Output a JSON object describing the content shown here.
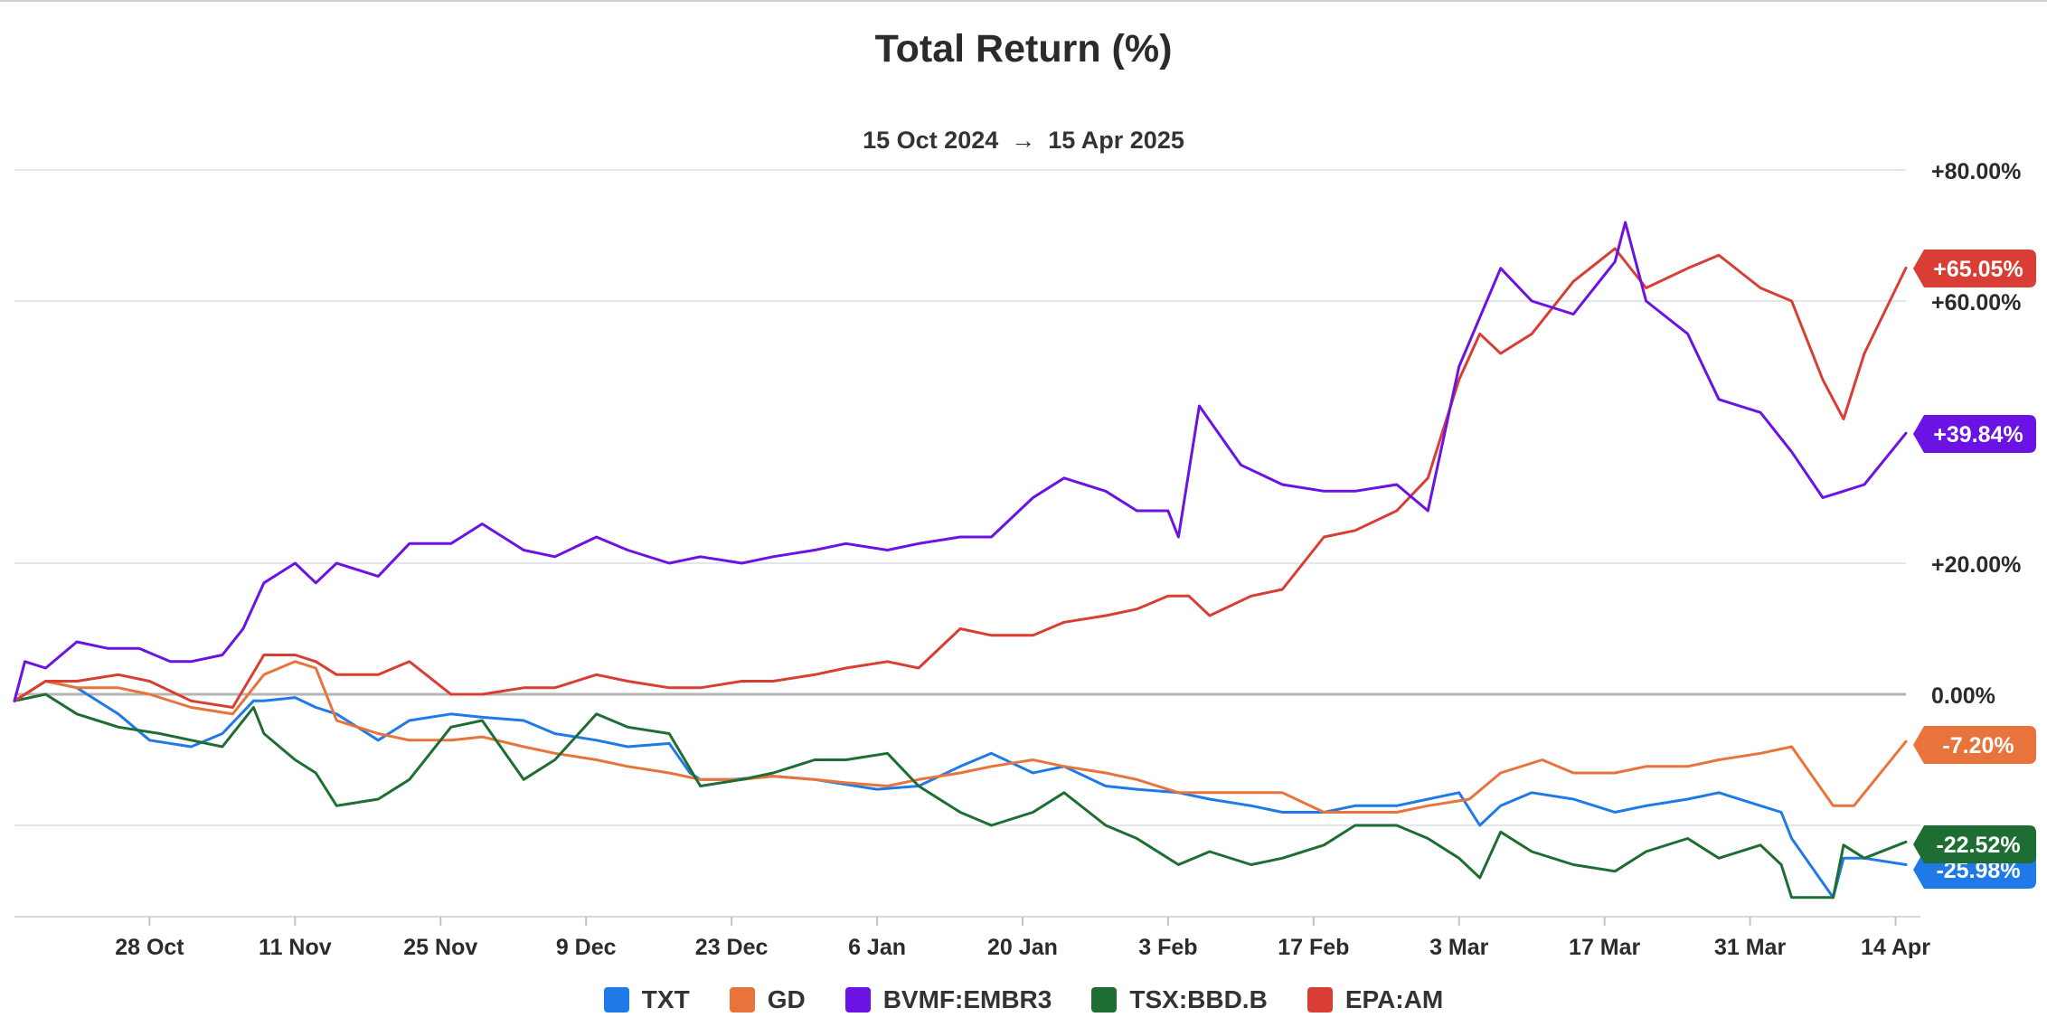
{
  "chart_data": {
    "type": "line",
    "title": "Total Return (%)",
    "date_range": {
      "start": "15 Oct 2024",
      "arrow": "→",
      "end": "15 Apr 2025"
    },
    "x_ticks": [
      "28 Oct",
      "11 Nov",
      "25 Nov",
      "9 Dec",
      "23 Dec",
      "6 Jan",
      "20 Jan",
      "3 Feb",
      "17 Feb",
      "3 Mar",
      "17 Mar",
      "31 Mar",
      "14 Apr"
    ],
    "y_ticks": [
      "+80.00%",
      "+60.00%",
      "+20.00%",
      "0.00%"
    ],
    "ylim": [
      -34,
      80
    ],
    "grid": true,
    "legend_position": "bottom",
    "series": [
      {
        "name": "TXT",
        "color": "#1f7ae8",
        "end_label": "-25.98%",
        "x": [
          "2024-10-15",
          "2024-10-18",
          "2024-10-21",
          "2024-10-25",
          "2024-10-28",
          "2024-11-01",
          "2024-11-04",
          "2024-11-07",
          "2024-11-08",
          "2024-11-11",
          "2024-11-13",
          "2024-11-15",
          "2024-11-19",
          "2024-11-22",
          "2024-11-26",
          "2024-11-29",
          "2024-12-03",
          "2024-12-06",
          "2024-12-10",
          "2024-12-13",
          "2024-12-17",
          "2024-12-19",
          "2024-12-20",
          "2024-12-23",
          "2024-12-27",
          "2024-12-31",
          "2025-01-06",
          "2025-01-10",
          "2025-01-14",
          "2025-01-17",
          "2025-01-21",
          "2025-01-24",
          "2025-01-28",
          "2025-01-31",
          "2025-02-04",
          "2025-02-07",
          "2025-02-11",
          "2025-02-14",
          "2025-02-18",
          "2025-02-21",
          "2025-02-25",
          "2025-02-28",
          "2025-03-03",
          "2025-03-05",
          "2025-03-07",
          "2025-03-10",
          "2025-03-14",
          "2025-03-18",
          "2025-03-21",
          "2025-03-25",
          "2025-03-28",
          "2025-04-01",
          "2025-04-03",
          "2025-04-04",
          "2025-04-08",
          "2025-04-09",
          "2025-04-11",
          "2025-04-15"
        ],
        "y": [
          -1,
          2,
          1,
          -3,
          -7,
          -8,
          -6,
          -1,
          -1,
          -0.5,
          -2,
          -3,
          -7,
          -4,
          -3,
          -3.5,
          -4,
          -6,
          -7,
          -8,
          -7.5,
          -12,
          -13,
          -13,
          -12.5,
          -13,
          -14.5,
          -14,
          -11,
          -9,
          -12,
          -11,
          -14,
          -14.5,
          -15,
          -16,
          -17,
          -18,
          -18,
          -17,
          -17,
          -16,
          -15,
          -20,
          -17,
          -15,
          -16,
          -18,
          -17,
          -16,
          -15,
          -17,
          -18,
          -22,
          -31,
          -25,
          -25,
          -26
        ]
      },
      {
        "name": "GD",
        "color": "#e8743b",
        "end_label": "-7.20%",
        "x": [
          "2024-10-15",
          "2024-10-18",
          "2024-10-21",
          "2024-10-25",
          "2024-10-28",
          "2024-11-01",
          "2024-11-05",
          "2024-11-08",
          "2024-11-11",
          "2024-11-13",
          "2024-11-15",
          "2024-11-19",
          "2024-11-22",
          "2024-11-26",
          "2024-11-29",
          "2024-12-03",
          "2024-12-06",
          "2024-12-10",
          "2024-12-13",
          "2024-12-17",
          "2024-12-20",
          "2024-12-24",
          "2024-12-27",
          "2024-12-31",
          "2025-01-03",
          "2025-01-07",
          "2025-01-10",
          "2025-01-14",
          "2025-01-17",
          "2025-01-21",
          "2025-01-24",
          "2025-01-28",
          "2025-01-31",
          "2025-02-04",
          "2025-02-07",
          "2025-02-11",
          "2025-02-14",
          "2025-02-18",
          "2025-02-21",
          "2025-02-25",
          "2025-02-28",
          "2025-03-04",
          "2025-03-07",
          "2025-03-11",
          "2025-03-14",
          "2025-03-18",
          "2025-03-21",
          "2025-03-25",
          "2025-03-28",
          "2025-04-01",
          "2025-04-04",
          "2025-04-08",
          "2025-04-10",
          "2025-04-15"
        ],
        "y": [
          -1,
          2,
          1,
          1,
          0,
          -2,
          -3,
          3,
          5,
          4,
          -4,
          -6,
          -7,
          -7,
          -6.5,
          -8,
          -9,
          -10,
          -11,
          -12,
          -13,
          -13,
          -12.5,
          -13,
          -13.5,
          -14,
          -13,
          -12,
          -11,
          -10,
          -11,
          -12,
          -13,
          -15,
          -15,
          -15,
          -15,
          -18,
          -18,
          -18,
          -17,
          -16,
          -12,
          -10,
          -12,
          -12,
          -11,
          -11,
          -10,
          -9,
          -8,
          -17,
          -17,
          -7.2
        ]
      },
      {
        "name": "BVMF:EMBR3",
        "color": "#6b12e5",
        "end_label": "+39.84%",
        "x": [
          "2024-10-15",
          "2024-10-16",
          "2024-10-18",
          "2024-10-21",
          "2024-10-24",
          "2024-10-27",
          "2024-10-30",
          "2024-11-01",
          "2024-11-04",
          "2024-11-06",
          "2024-11-08",
          "2024-11-11",
          "2024-11-13",
          "2024-11-15",
          "2024-11-19",
          "2024-11-22",
          "2024-11-26",
          "2024-11-29",
          "2024-12-03",
          "2024-12-06",
          "2024-12-10",
          "2024-12-13",
          "2024-12-17",
          "2024-12-20",
          "2024-12-24",
          "2024-12-27",
          "2024-12-31",
          "2025-01-03",
          "2025-01-07",
          "2025-01-10",
          "2025-01-14",
          "2025-01-17",
          "2025-01-21",
          "2025-01-24",
          "2025-01-28",
          "2025-01-31",
          "2025-02-03",
          "2025-02-04",
          "2025-02-06",
          "2025-02-10",
          "2025-02-14",
          "2025-02-18",
          "2025-02-21",
          "2025-02-25",
          "2025-02-28",
          "2025-03-03",
          "2025-03-07",
          "2025-03-10",
          "2025-03-14",
          "2025-03-18",
          "2025-03-19",
          "2025-03-21",
          "2025-03-25",
          "2025-03-28",
          "2025-04-01",
          "2025-04-04",
          "2025-04-07",
          "2025-04-09",
          "2025-04-11",
          "2025-04-15"
        ],
        "y": [
          -1,
          5,
          4,
          8,
          7,
          7,
          5,
          5,
          6,
          10,
          17,
          20,
          17,
          20,
          18,
          23,
          23,
          26,
          22,
          21,
          24,
          22,
          20,
          21,
          20,
          21,
          22,
          23,
          22,
          23,
          24,
          24,
          30,
          33,
          31,
          28,
          28,
          24,
          44,
          35,
          32,
          31,
          31,
          32,
          28,
          50,
          65,
          60,
          58,
          66,
          72,
          60,
          55,
          45,
          43,
          37,
          30,
          31,
          32,
          39.84
        ]
      },
      {
        "name": "TSX:BBD.B",
        "color": "#1e6e33",
        "end_label": "-22.52%",
        "x": [
          "2024-10-15",
          "2024-10-18",
          "2024-10-21",
          "2024-10-25",
          "2024-10-29",
          "2024-11-01",
          "2024-11-04",
          "2024-11-07",
          "2024-11-08",
          "2024-11-11",
          "2024-11-13",
          "2024-11-15",
          "2024-11-19",
          "2024-11-22",
          "2024-11-26",
          "2024-11-29",
          "2024-12-03",
          "2024-12-06",
          "2024-12-10",
          "2024-12-13",
          "2024-12-17",
          "2024-12-20",
          "2024-12-24",
          "2024-12-27",
          "2024-12-31",
          "2025-01-03",
          "2025-01-07",
          "2025-01-10",
          "2025-01-14",
          "2025-01-17",
          "2025-01-21",
          "2025-01-24",
          "2025-01-28",
          "2025-01-31",
          "2025-02-04",
          "2025-02-07",
          "2025-02-11",
          "2025-02-14",
          "2025-02-18",
          "2025-02-21",
          "2025-02-25",
          "2025-02-28",
          "2025-03-03",
          "2025-03-05",
          "2025-03-07",
          "2025-03-10",
          "2025-03-14",
          "2025-03-18",
          "2025-03-21",
          "2025-03-25",
          "2025-03-28",
          "2025-04-01",
          "2025-04-03",
          "2025-04-04",
          "2025-04-08",
          "2025-04-09",
          "2025-04-11",
          "2025-04-15"
        ],
        "y": [
          -1,
          0,
          -3,
          -5,
          -6,
          -7,
          -8,
          -2,
          -6,
          -10,
          -12,
          -17,
          -16,
          -13,
          -5,
          -4,
          -13,
          -10,
          -3,
          -5,
          -6,
          -14,
          -13,
          -12,
          -10,
          -10,
          -9,
          -14,
          -18,
          -20,
          -18,
          -15,
          -20,
          -22,
          -26,
          -24,
          -26,
          -25,
          -23,
          -20,
          -20,
          -22,
          -25,
          -28,
          -21,
          -24,
          -26,
          -27,
          -24,
          -22,
          -25,
          -23,
          -26,
          -31,
          -31,
          -23,
          -25,
          -22.52
        ]
      },
      {
        "name": "EPA:AM",
        "color": "#d93e34",
        "end_label": "+65.05%",
        "x": [
          "2024-10-15",
          "2024-10-18",
          "2024-10-21",
          "2024-10-25",
          "2024-10-28",
          "2024-11-01",
          "2024-11-05",
          "2024-11-08",
          "2024-11-11",
          "2024-11-13",
          "2024-11-15",
          "2024-11-19",
          "2024-11-22",
          "2024-11-26",
          "2024-11-29",
          "2024-12-03",
          "2024-12-06",
          "2024-12-10",
          "2024-12-13",
          "2024-12-17",
          "2024-12-20",
          "2024-12-24",
          "2024-12-27",
          "2024-12-31",
          "2025-01-03",
          "2025-01-07",
          "2025-01-10",
          "2025-01-14",
          "2025-01-17",
          "2025-01-21",
          "2025-01-24",
          "2025-01-28",
          "2025-01-31",
          "2025-02-03",
          "2025-02-05",
          "2025-02-07",
          "2025-02-11",
          "2025-02-14",
          "2025-02-18",
          "2025-02-21",
          "2025-02-25",
          "2025-02-28",
          "2025-03-03",
          "2025-03-05",
          "2025-03-07",
          "2025-03-10",
          "2025-03-14",
          "2025-03-18",
          "2025-03-21",
          "2025-03-25",
          "2025-03-28",
          "2025-04-01",
          "2025-04-04",
          "2025-04-07",
          "2025-04-09",
          "2025-04-11",
          "2025-04-15"
        ],
        "y": [
          -1,
          2,
          2,
          3,
          2,
          -1,
          -2,
          6,
          6,
          5,
          3,
          3,
          5,
          0,
          0,
          1,
          1,
          3,
          2,
          1,
          1,
          2,
          2,
          3,
          4,
          5,
          4,
          10,
          9,
          9,
          11,
          12,
          13,
          15,
          15,
          12,
          15,
          16,
          24,
          25,
          28,
          33,
          48,
          55,
          52,
          55,
          63,
          68,
          62,
          65,
          67,
          62,
          60,
          48,
          42,
          52,
          65.05
        ]
      }
    ]
  }
}
